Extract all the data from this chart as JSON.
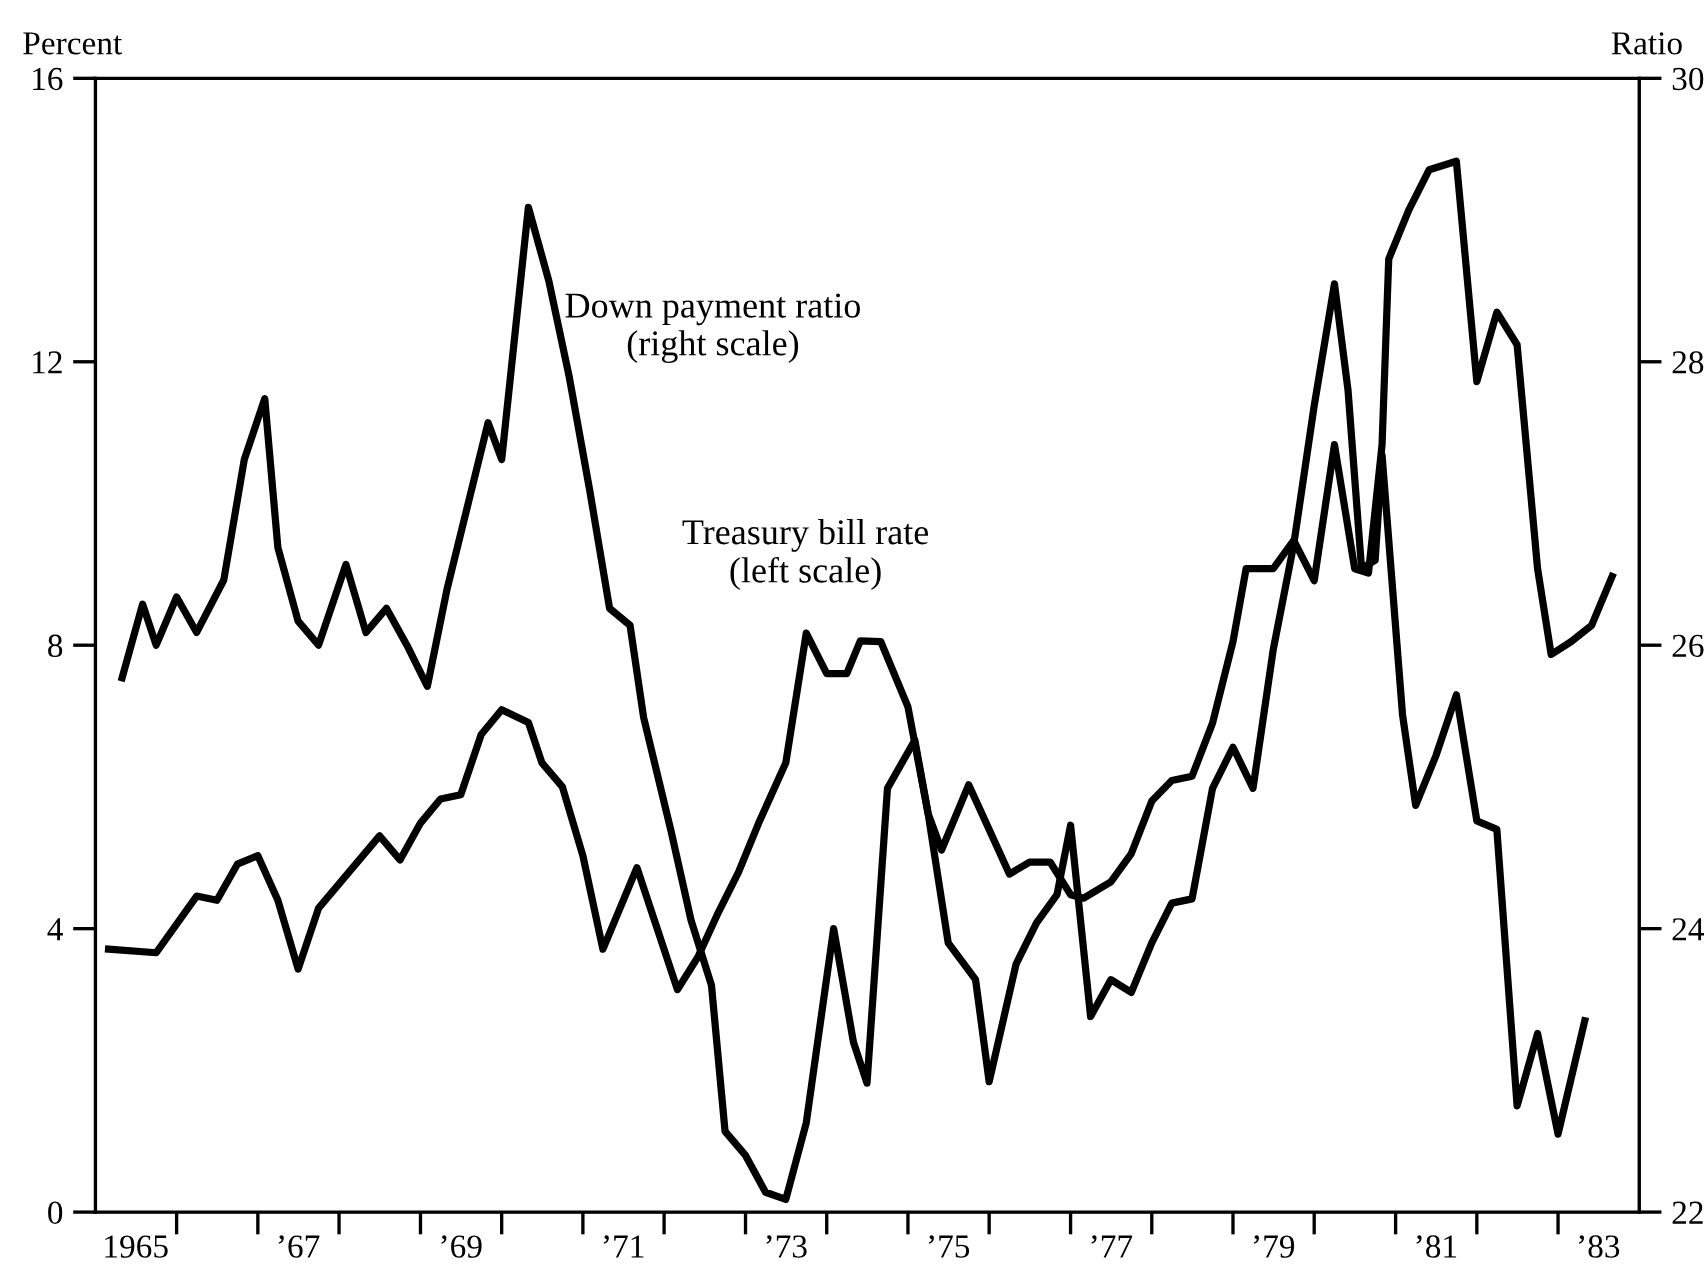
{
  "chart_data": {
    "type": "line",
    "ylabel": "Percent",
    "y2label": "Ratio",
    "xlim": [
      "1965-01",
      "1984-01"
    ],
    "xticks": [
      {
        "value": "1965-07",
        "label": "1965"
      },
      {
        "value": "1966",
        "label": null
      },
      {
        "value": "1967",
        "label": null
      },
      {
        "value": "1967-07",
        "label": "’67"
      },
      {
        "value": "1968",
        "label": null
      },
      {
        "value": "1969",
        "label": null
      },
      {
        "value": "1969-07",
        "label": "’69"
      },
      {
        "value": "1970",
        "label": null
      },
      {
        "value": "1971",
        "label": null
      },
      {
        "value": "1971-07",
        "label": "’71"
      },
      {
        "value": "1972",
        "label": null
      },
      {
        "value": "1973",
        "label": null
      },
      {
        "value": "1973-07",
        "label": "’73"
      },
      {
        "value": "1974",
        "label": null
      },
      {
        "value": "1975",
        "label": null
      },
      {
        "value": "1975-07",
        "label": "’75"
      },
      {
        "value": "1976",
        "label": null
      },
      {
        "value": "1977",
        "label": null
      },
      {
        "value": "1977-07",
        "label": "’77"
      },
      {
        "value": "1978",
        "label": null
      },
      {
        "value": "1979",
        "label": null
      },
      {
        "value": "1979-07",
        "label": "’79"
      },
      {
        "value": "1980",
        "label": null
      },
      {
        "value": "1981",
        "label": null
      },
      {
        "value": "1981-07",
        "label": "’81"
      },
      {
        "value": "1982",
        "label": null
      },
      {
        "value": "1983",
        "label": null
      },
      {
        "value": "1983-07",
        "label": "’83"
      }
    ],
    "ylim": [
      0,
      16
    ],
    "yticks": [
      0,
      4,
      8,
      12,
      16
    ],
    "y2lim": [
      22,
      30
    ],
    "y2ticks": [
      22,
      24,
      26,
      28,
      30
    ],
    "grid": false,
    "legend": false,
    "marker": "none",
    "line_style": "solid",
    "series": [
      {
        "name": "Down payment ratio\n(right scale)",
        "color": "#000000",
        "axis": "y2",
        "x": [
          "1965-05",
          "1965-08",
          "1965-10",
          "1966-01",
          "1966-04",
          "1966-08",
          "1966-11",
          "1967-02",
          "1967-04",
          "1967-07",
          "1967-10",
          "1968-02",
          "1968-05",
          "1968-08",
          "1968-11",
          "1969-02",
          "1969-05",
          "1969-11",
          "1970-01",
          "1970-05",
          "1970-08",
          "1970-11",
          "1971-02",
          "1971-05",
          "1971-08",
          "1971-10",
          "1972-02",
          "1972-05",
          "1972-08",
          "1972-10",
          "1973-01",
          "1973-04",
          "1973-07",
          "1973-10",
          "1974-02",
          "1974-05",
          "1974-07",
          "1974-10",
          "1975-02",
          "1975-04",
          "1975-07",
          "1975-11",
          "1976-01",
          "1976-05",
          "1976-08",
          "1976-11",
          "1977-01",
          "1977-04",
          "1977-07",
          "1977-10",
          "1978-01",
          "1978-04",
          "1978-07",
          "1978-10",
          "1979-01",
          "1979-04",
          "1979-07",
          "1979-10",
          "1980-01",
          "1980-04",
          "1980-06",
          "1980-08",
          "1980-10",
          "1980-11",
          "1981-02",
          "1981-04",
          "1981-07",
          "1981-10",
          "1982-01",
          "1982-04",
          "1982-07",
          "1982-10",
          "1983-01",
          "1983-05"
        ],
        "values": [
          25.77,
          26.29,
          26.0,
          26.34,
          26.09,
          26.46,
          27.31,
          27.74,
          26.69,
          26.17,
          26.0,
          26.57,
          26.09,
          26.26,
          26.0,
          25.71,
          26.4,
          27.57,
          27.31,
          29.09,
          28.57,
          27.89,
          27.09,
          26.26,
          26.14,
          25.49,
          24.69,
          24.06,
          23.6,
          22.57,
          22.4,
          22.14,
          22.09,
          22.63,
          24.0,
          23.2,
          22.91,
          24.99,
          25.33,
          24.82,
          23.9,
          23.64,
          22.92,
          23.75,
          24.04,
          24.24,
          24.73,
          23.38,
          23.64,
          23.55,
          23.9,
          24.18,
          24.21,
          24.99,
          25.28,
          24.99,
          25.97,
          26.71,
          27.69,
          28.55,
          27.8,
          26.54,
          26.6,
          27.34,
          25.51,
          24.87,
          25.22,
          25.65,
          24.76,
          24.7,
          22.75,
          23.26,
          22.55,
          23.35
        ]
      },
      {
        "name": "Treasury bill rate\n(left scale)",
        "color": "#000000",
        "x": [
          "1965-03",
          "1965-10",
          "1966-04",
          "1966-07",
          "1966-10",
          "1967-01",
          "1967-04",
          "1967-07",
          "1967-10",
          "1968-04",
          "1968-07",
          "1968-10",
          "1969-01",
          "1969-04",
          "1969-07",
          "1969-10",
          "1970-01",
          "1970-05",
          "1970-07",
          "1970-10",
          "1971-01",
          "1971-04",
          "1971-09",
          "1971-12",
          "1972-03",
          "1972-06",
          "1972-09",
          "1972-12",
          "1973-03",
          "1973-07",
          "1973-10",
          "1974-01",
          "1974-04",
          "1974-06",
          "1974-09",
          "1975-01",
          "1975-04",
          "1975-06",
          "1975-10",
          "1976-01",
          "1976-04",
          "1976-07",
          "1976-10",
          "1977-01",
          "1977-03",
          "1977-07",
          "1977-10",
          "1978-01",
          "1978-04",
          "1978-07",
          "1978-10",
          "1979-01",
          "1979-03",
          "1979-07",
          "1979-10",
          "1980-01",
          "1980-04",
          "1980-07",
          "1980-09",
          "1980-11",
          "1980-12",
          "1981-03",
          "1981-06",
          "1981-10",
          "1982-01",
          "1982-04",
          "1982-07",
          "1982-10",
          "1982-12",
          "1983-03",
          "1983-06",
          "1983-09"
        ],
        "values": [
          3.71,
          3.66,
          4.46,
          4.4,
          4.91,
          5.03,
          4.4,
          3.43,
          4.29,
          4.97,
          5.31,
          4.97,
          5.49,
          5.83,
          5.89,
          6.74,
          7.09,
          6.91,
          6.34,
          6.0,
          5.03,
          3.71,
          4.86,
          4.0,
          3.14,
          3.6,
          4.23,
          4.8,
          5.49,
          6.34,
          8.17,
          7.6,
          7.6,
          8.06,
          8.05,
          7.13,
          5.63,
          5.11,
          6.03,
          5.4,
          4.77,
          4.94,
          4.94,
          4.48,
          4.43,
          4.66,
          5.06,
          5.8,
          6.09,
          6.15,
          6.9,
          8.05,
          9.08,
          9.08,
          9.48,
          8.91,
          10.83,
          9.08,
          9.02,
          10.83,
          13.45,
          14.14,
          14.71,
          14.83,
          11.72,
          12.7,
          12.24,
          9.08,
          7.87,
          8.05,
          8.28,
          8.97
        ]
      }
    ]
  }
}
